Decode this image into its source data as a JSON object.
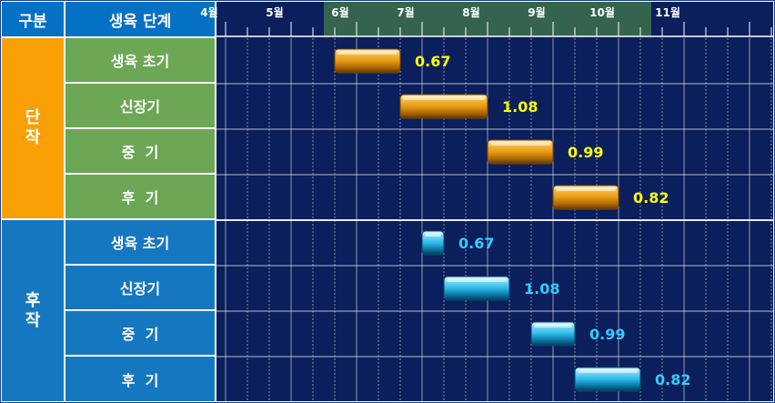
{
  "header": {
    "category_label": "구분",
    "stage_label": "생육 단계"
  },
  "groups": [
    {
      "label_top": "단",
      "label_bottom": "작",
      "color": "#f8a006"
    },
    {
      "label_top": "후",
      "label_bottom": "작",
      "color": "#1677c1"
    }
  ],
  "colors": {
    "header": "#0571c5",
    "chart_bg": "#0a1f5c",
    "highlight_band": "#34634e",
    "stage_green": "#6ca755",
    "orange_bar": "#e69a14",
    "blue_bar": "#2bb8e8",
    "orange_value": "#ffff00",
    "blue_value": "#33ccff"
  },
  "chart_data": {
    "type": "gantt",
    "months": [
      "4월",
      "5월",
      "6월",
      "7월",
      "8월",
      "9월",
      "10월",
      "11월"
    ],
    "highlighted_months": [
      "6월",
      "7월",
      "8월",
      "9월",
      "10월"
    ],
    "groups": [
      {
        "name": "단작",
        "stages": [
          {
            "stage": "생육 초기",
            "start": "5월 하순",
            "end": "6월 중순",
            "value": "0.67"
          },
          {
            "stage": "신장기",
            "start": "6월 하순",
            "end": "7월 하순",
            "value": "1.08"
          },
          {
            "stage": "중  기",
            "start": "8월 상순",
            "end": "8월 하순",
            "value": "0.99"
          },
          {
            "stage": "후  기",
            "start": "9월 상순",
            "end": "9월 하순",
            "value": "0.82"
          }
        ]
      },
      {
        "name": "후작",
        "stages": [
          {
            "stage": "생육 초기",
            "start": "7월 상순",
            "end": "7월 상순",
            "value": "0.67"
          },
          {
            "stage": "신장기",
            "start": "7월 중순",
            "end": "8월 상순",
            "value": "1.08"
          },
          {
            "stage": "중  기",
            "start": "8월 하순",
            "end": "9월 상순",
            "value": "0.99"
          },
          {
            "stage": "후  기",
            "start": "9월 중순",
            "end": "10월 상순",
            "value": "0.82"
          }
        ]
      }
    ]
  }
}
